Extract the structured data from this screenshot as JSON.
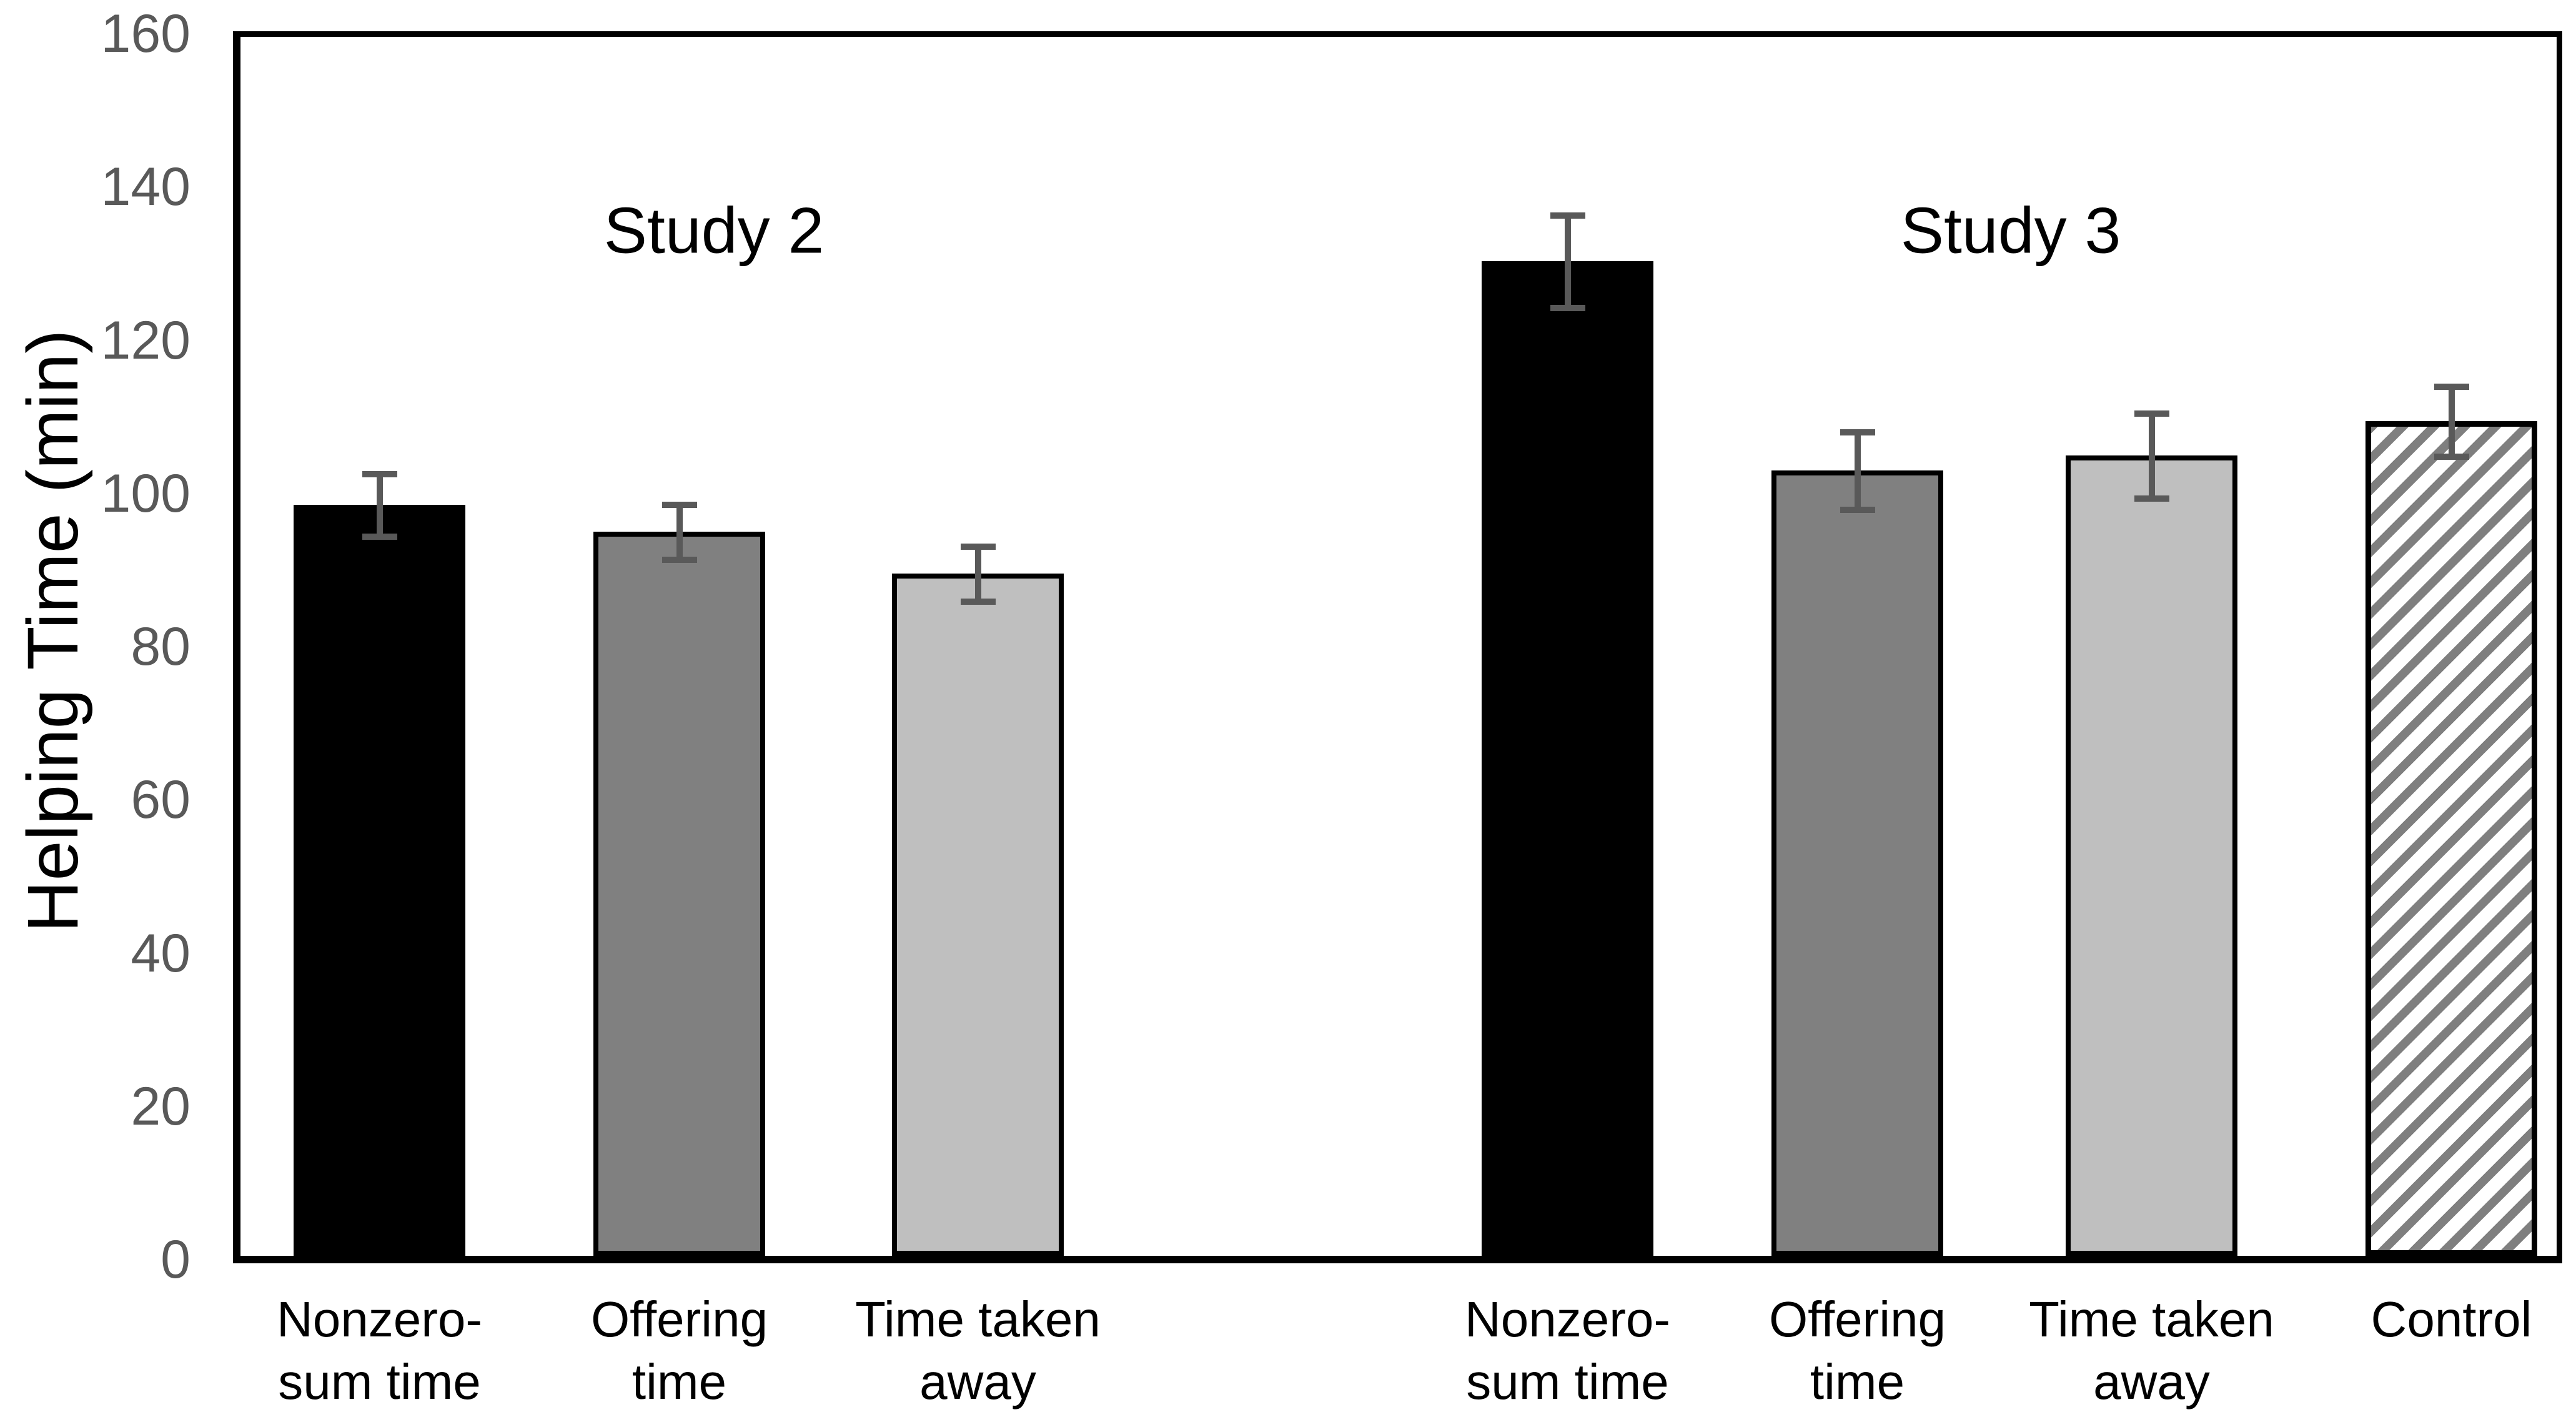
{
  "chart_data": {
    "type": "bar",
    "title": "",
    "ylabel": "Helping Time (min)",
    "xlabel": "",
    "ylim": [
      0,
      160
    ],
    "yticks": [
      0,
      20,
      40,
      60,
      80,
      100,
      120,
      140,
      160
    ],
    "grid": false,
    "legend": false,
    "groups": [
      "Study 2",
      "Study 3"
    ],
    "bars": [
      {
        "group": "Study 2",
        "category": "Nonzero-\nsum time",
        "value": 98.5,
        "error": 4.5,
        "style": "black"
      },
      {
        "group": "Study 2",
        "category": "Offering\ntime",
        "value": 95,
        "error": 4,
        "style": "dark-gray"
      },
      {
        "group": "Study 2",
        "category": "Time taken\naway",
        "value": 89.5,
        "error": 4,
        "style": "light-gray"
      },
      {
        "group": "Study 3",
        "category": "Nonzero-\nsum time",
        "value": 130.5,
        "error": 6.5,
        "style": "black"
      },
      {
        "group": "Study 3",
        "category": "Offering\ntime",
        "value": 103,
        "error": 5.5,
        "style": "dark-gray"
      },
      {
        "group": "Study 3",
        "category": "Time taken\naway",
        "value": 105,
        "error": 6,
        "style": "light-gray"
      },
      {
        "group": "Study 3",
        "category": "Control",
        "value": 109.5,
        "error": 5,
        "style": "hatched"
      }
    ],
    "colors": {
      "background": "#ffffff",
      "axis": "#000000",
      "bar_black": "#000000",
      "bar_dark_gray": "#808080",
      "bar_light_gray": "#bfbfbf",
      "hatch_stripe": "#7f7f7f",
      "error_bar": "#595959",
      "tick_label": "#595959"
    }
  }
}
